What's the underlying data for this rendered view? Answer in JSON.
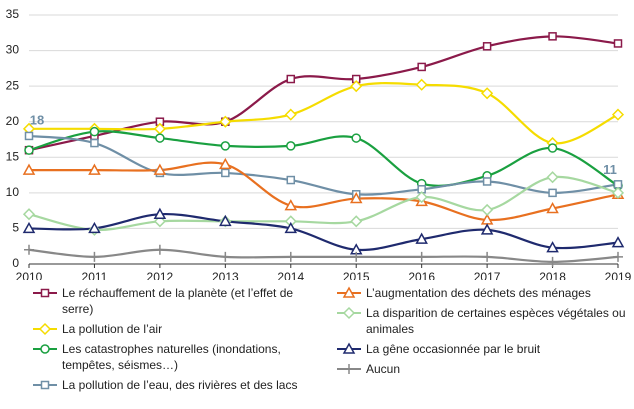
{
  "chart_data": {
    "type": "line",
    "x": [
      2010,
      2011,
      2012,
      2013,
      2014,
      2015,
      2016,
      2017,
      2018,
      2019
    ],
    "xlim": [
      2010,
      2019
    ],
    "xticks": [
      2010,
      2011,
      2012,
      2013,
      2014,
      2015,
      2016,
      2017,
      2018,
      2019
    ],
    "ylim": [
      0,
      35
    ],
    "yticks": [
      0,
      5,
      10,
      15,
      20,
      25,
      30,
      35
    ],
    "grid": true,
    "series": [
      {
        "name": "Le réchauffement de la planète (et l’effet de serre)",
        "color": "#8b1a4a",
        "marker": "square",
        "values": [
          16,
          18,
          20,
          20,
          26,
          26,
          27.7,
          30.6,
          32,
          31
        ]
      },
      {
        "name": "La pollution de l’air",
        "color": "#f5dc00",
        "marker": "diamond",
        "values": [
          19,
          19,
          19,
          20,
          21,
          25,
          25.2,
          24,
          17,
          21
        ]
      },
      {
        "name": "Les catastrophes naturelles (inondations, tempêtes, séismes…)",
        "color": "#1aa040",
        "marker": "circle",
        "values": [
          16,
          18.6,
          17.7,
          16.6,
          16.6,
          17.7,
          11.3,
          12.4,
          16.3,
          11
        ]
      },
      {
        "name": "La pollution de l’eau, des rivières et des lacs",
        "color": "#6f8fa6",
        "marker": "square",
        "values": [
          18,
          17,
          12.8,
          12.8,
          11.8,
          9.8,
          10.5,
          11.6,
          10,
          11.2
        ]
      },
      {
        "name": "L’augmentation des déchets des ménages",
        "color": "#e87020",
        "marker": "triangle",
        "values": [
          13.2,
          13.2,
          13.2,
          14,
          8.2,
          9.2,
          8.8,
          6.2,
          7.8,
          9.8
        ]
      },
      {
        "name": "La disparition de certaines espèces végétales ou animales",
        "color": "#a6d8a0",
        "marker": "diamond",
        "values": [
          7,
          4.8,
          6,
          6,
          6,
          6,
          9.4,
          7.6,
          12.2,
          10
        ]
      },
      {
        "name": "La gêne occasionnée par le bruit",
        "color": "#1f2a6e",
        "marker": "triangle",
        "values": [
          5,
          5,
          7,
          6,
          5,
          2,
          3.5,
          4.8,
          2.3,
          3
        ]
      },
      {
        "name": "Aucun",
        "color": "#888888",
        "marker": "plus",
        "values": [
          2,
          1,
          2,
          1,
          1,
          1,
          1,
          1,
          0.3,
          1
        ]
      }
    ],
    "annotations": [
      {
        "x": 2010,
        "value": 18,
        "color": "#6f8fa6"
      },
      {
        "x": 2019,
        "value": 11,
        "color": "#6f8fa6"
      }
    ]
  }
}
